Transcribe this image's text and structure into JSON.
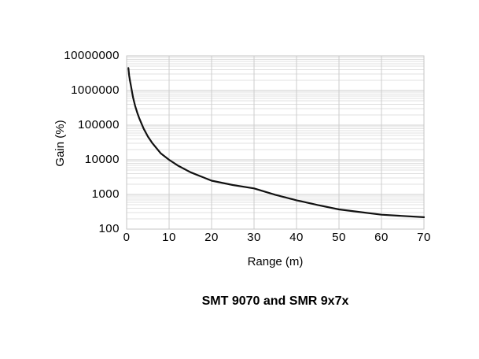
{
  "caption": "SMT 9070 and SMR 9x7x",
  "colors": {
    "background": "#ffffff",
    "grid_minor": "#e0e0e0",
    "grid_major": "#cccccc",
    "frame": "#c6c6c6",
    "curve": "#111111",
    "text": "#000000"
  },
  "chart_data": {
    "type": "line",
    "title": "SMT 9070 and SMR 9x7x",
    "xlabel": "Range (m)",
    "ylabel": "Gain (%)",
    "grid": true,
    "legend": "none",
    "x_axis": {
      "scale": "linear",
      "min": 0,
      "max": 70,
      "ticks": [
        0,
        10,
        20,
        30,
        40,
        50,
        60,
        70
      ],
      "tick_labels": [
        "0",
        "10",
        "20",
        "30",
        "40",
        "50",
        "60",
        "70"
      ]
    },
    "y_axis": {
      "scale": "log",
      "min": 100,
      "max": 10000000,
      "ticks": [
        10000000,
        1000000,
        100000,
        10000,
        1000,
        100
      ],
      "tick_labels": [
        "10000000",
        "1000000",
        "100000",
        "10000",
        "1000",
        "100"
      ],
      "minor_gridlines": true
    },
    "series": [
      {
        "name": "gain-vs-range",
        "x": [
          0.4,
          0.6,
          0.8,
          1,
          1.5,
          2,
          2.5,
          3,
          4,
          5,
          6,
          8,
          10,
          12,
          15,
          20,
          25,
          30,
          35,
          40,
          45,
          50,
          55,
          60,
          65,
          70
        ],
        "y": [
          4500000,
          2700000,
          1900000,
          1400000,
          640000,
          360000,
          230000,
          155000,
          80000,
          47000,
          31000,
          15500,
          10000,
          6900,
          4400,
          2500,
          1870,
          1500,
          980,
          680,
          495,
          370,
          310,
          260,
          240,
          220
        ]
      }
    ]
  }
}
